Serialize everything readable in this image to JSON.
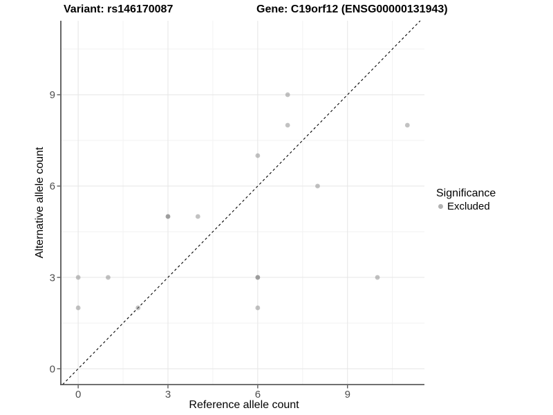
{
  "header": {
    "title_left": "Variant: rs146170087",
    "title_right": "Gene: C19orf12 (ENSG00000131943)"
  },
  "chart_data": {
    "type": "scatter",
    "title": "Variant: rs146170087    Gene: C19orf12 (ENSG00000131943)",
    "xlabel": "Reference allele count",
    "ylabel": "Alternative allele count",
    "x_ticks": [
      0,
      3,
      6,
      9
    ],
    "y_ticks": [
      0,
      3,
      6,
      9
    ],
    "x_minor_gridlines": [
      1.5,
      4.5,
      7.5,
      10.5
    ],
    "y_minor_gridlines": [
      1.5,
      4.5,
      7.5,
      10.5
    ],
    "xlim": [
      -0.58,
      11.57
    ],
    "ylim": [
      -0.52,
      11.43
    ],
    "grid": true,
    "identity_line": {
      "style": "dashed",
      "color": "#000000"
    },
    "series": [
      {
        "name": "Excluded",
        "color": "#787878",
        "alpha": 0.45,
        "points": [
          {
            "x": 0,
            "y": 2,
            "n": 1
          },
          {
            "x": 0,
            "y": 3,
            "n": 1
          },
          {
            "x": 1,
            "y": 3,
            "n": 1
          },
          {
            "x": 2,
            "y": 2,
            "n": 1
          },
          {
            "x": 3,
            "y": 5,
            "n": 2
          },
          {
            "x": 4,
            "y": 5,
            "n": 1
          },
          {
            "x": 6,
            "y": 2,
            "n": 1
          },
          {
            "x": 6,
            "y": 3,
            "n": 2
          },
          {
            "x": 6,
            "y": 7,
            "n": 1
          },
          {
            "x": 7,
            "y": 8,
            "n": 1
          },
          {
            "x": 7,
            "y": 9,
            "n": 1
          },
          {
            "x": 8,
            "y": 6,
            "n": 1
          },
          {
            "x": 10,
            "y": 3,
            "n": 1
          },
          {
            "x": 11,
            "y": 8,
            "n": 1
          }
        ]
      }
    ],
    "legend": {
      "title": "Significance",
      "position": "right",
      "items": [
        {
          "label": "Excluded",
          "color": "#b2b2b2"
        }
      ]
    }
  },
  "colors": {
    "grid_major": "#e5e5e5",
    "grid_minor": "#f2f2f2",
    "axis_line": "#404040",
    "tick_label": "#4d4d4d",
    "point_fill": "#787878"
  }
}
